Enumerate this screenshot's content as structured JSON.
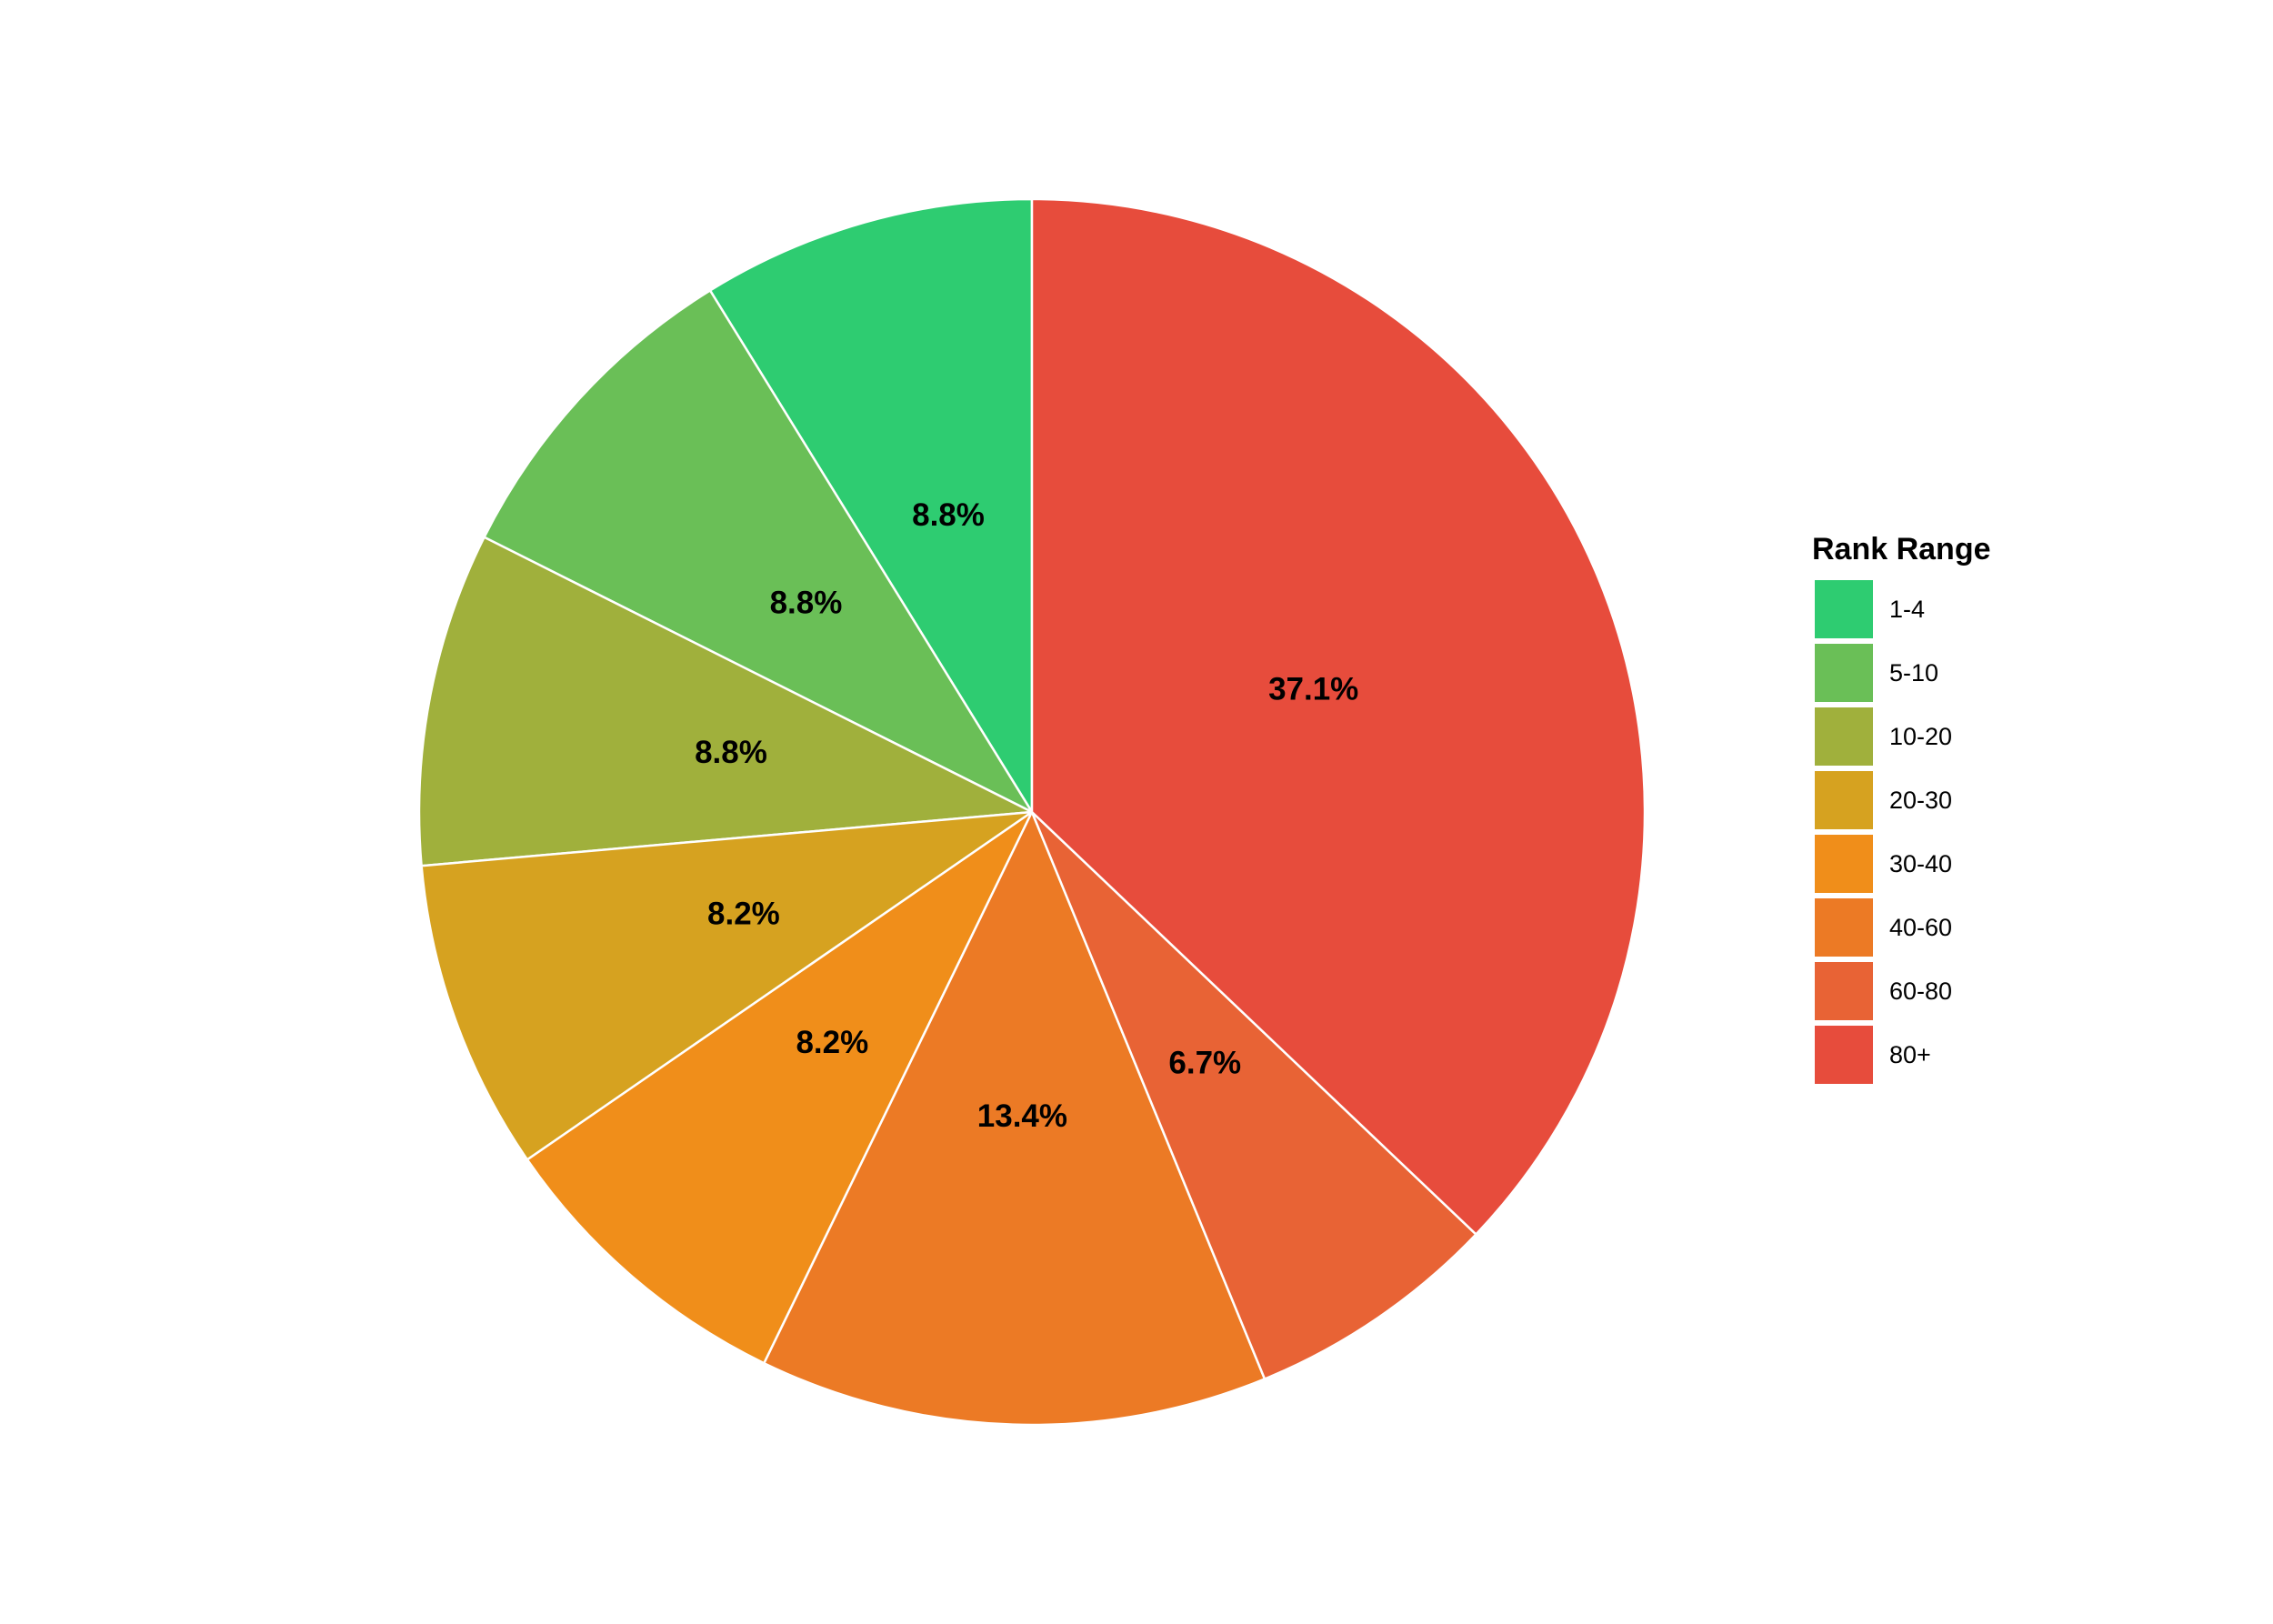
{
  "chart_data": {
    "type": "pie",
    "legend_title": "Rank Range",
    "categories": [
      "1-4",
      "5-10",
      "10-20",
      "20-30",
      "30-40",
      "40-60",
      "60-80",
      "80+"
    ],
    "values": [
      8.8,
      8.8,
      8.8,
      8.2,
      8.2,
      13.4,
      6.7,
      37.1
    ],
    "value_labels": [
      "8.8%",
      "8.8%",
      "8.8%",
      "8.2%",
      "8.2%",
      "13.4%",
      "6.7%",
      "37.1%"
    ],
    "colors": [
      "#2ecc71",
      "#6abf57",
      "#a0b03c",
      "#d6a220",
      "#f08e1a",
      "#ec7a25",
      "#e86335",
      "#e74c3c"
    ],
    "legend": "right"
  }
}
